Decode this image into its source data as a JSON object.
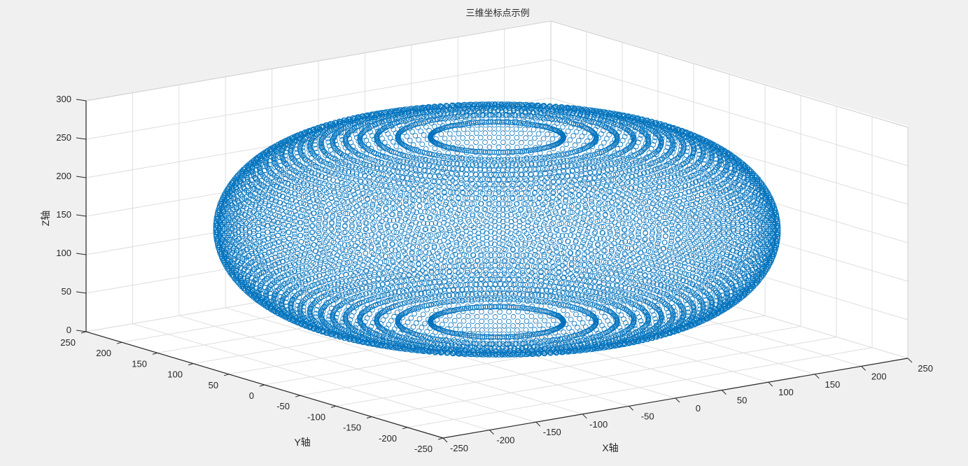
{
  "window": {
    "title": "三维坐标点示例"
  },
  "chart_data": {
    "type": "scatter3d",
    "title": "三维坐标点示例",
    "xlabel": "X轴",
    "ylabel": "Y轴",
    "zlabel": "Z轴",
    "xlim": [
      -250,
      250
    ],
    "ylim": [
      -250,
      250
    ],
    "zlim": [
      0,
      300
    ],
    "xticks": [
      "-250",
      "-200",
      "-150",
      "-100",
      "-50",
      "0",
      "50",
      "100",
      "150",
      "200",
      "250"
    ],
    "yticks": [
      "-250",
      "-200",
      "-150",
      "-100",
      "-50",
      "0",
      "50",
      "100",
      "150",
      "200",
      "250"
    ],
    "zticks": [
      "0",
      "50",
      "100",
      "150",
      "200",
      "250",
      "300"
    ],
    "grid": true,
    "marker": "circle",
    "marker_color": "#0072bd",
    "background_color": "#f0f0f0",
    "series": [
      {
        "shape": "hollow ellipsoidal shell (torus-like)",
        "x_range": [
          -240,
          240
        ],
        "y_range": [
          -240,
          240
        ],
        "z_range": [
          30,
          270
        ],
        "center": [
          0,
          0,
          150
        ]
      }
    ]
  }
}
